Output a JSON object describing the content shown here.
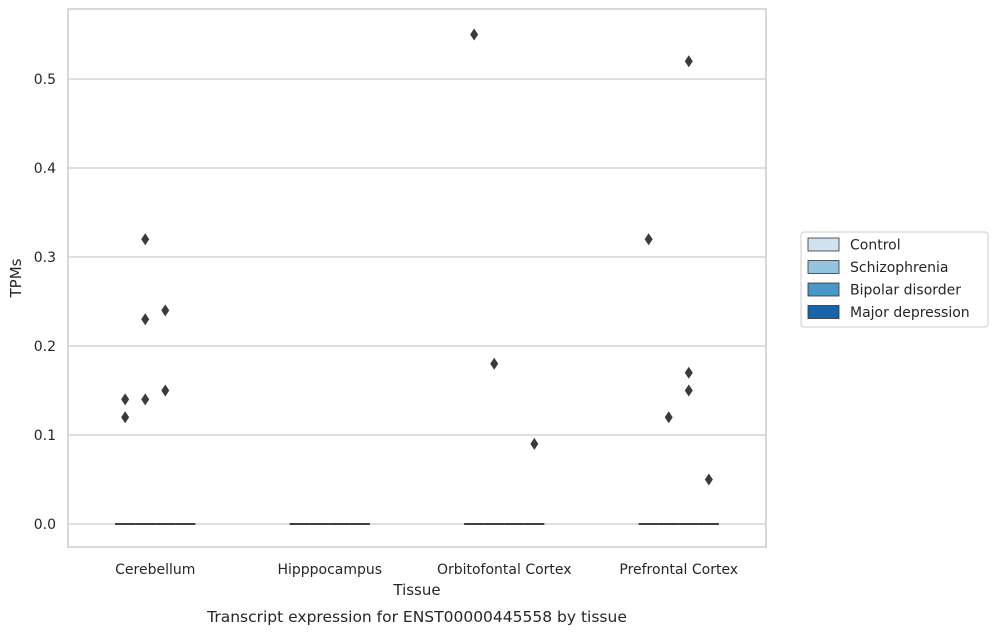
{
  "chart_data": {
    "type": "box",
    "caption": "Transcript expression for ENST00000445558 by tissue",
    "xlabel": "Tissue",
    "ylabel": "TPMs",
    "ylim": [
      -0.028,
      0.58
    ],
    "yticks": [
      0.0,
      0.1,
      0.2,
      0.3,
      0.4,
      0.5
    ],
    "ytick_labels": [
      "0.0",
      "0.1",
      "0.2",
      "0.3",
      "0.4",
      "0.5"
    ],
    "grid": "horizontal",
    "legend_position": "right",
    "categories": [
      "Cerebellum",
      "Hipppocampus",
      "Orbitofontal Cortex",
      "Prefrontal Cortex"
    ],
    "series": [
      {
        "name": "Control",
        "color": "#d0e1f2",
        "medians": [
          0.0,
          0.0,
          0.0,
          0.0
        ],
        "outliers": [
          [
            0.14,
            0.12
          ],
          [],
          [
            0.55
          ],
          [
            0.32
          ]
        ]
      },
      {
        "name": "Schizophrenia",
        "color": "#94c4df",
        "medians": [
          0.0,
          0.0,
          0.0,
          0.0
        ],
        "outliers": [
          [
            0.32,
            0.23,
            0.14
          ],
          [],
          [
            0.18
          ],
          [
            0.12
          ]
        ]
      },
      {
        "name": "Bipolar disorder",
        "color": "#4a98c9",
        "medians": [
          0.0,
          0.0,
          0.0,
          0.0
        ],
        "outliers": [
          [
            0.24,
            0.15
          ],
          [],
          [],
          [
            0.52,
            0.17,
            0.15
          ]
        ]
      },
      {
        "name": "Major depression",
        "color": "#1764ab",
        "medians": [
          0.0,
          0.0,
          0.0,
          0.0
        ],
        "outliers": [
          [],
          [],
          [
            0.09
          ],
          [
            0.05
          ]
        ]
      }
    ]
  }
}
